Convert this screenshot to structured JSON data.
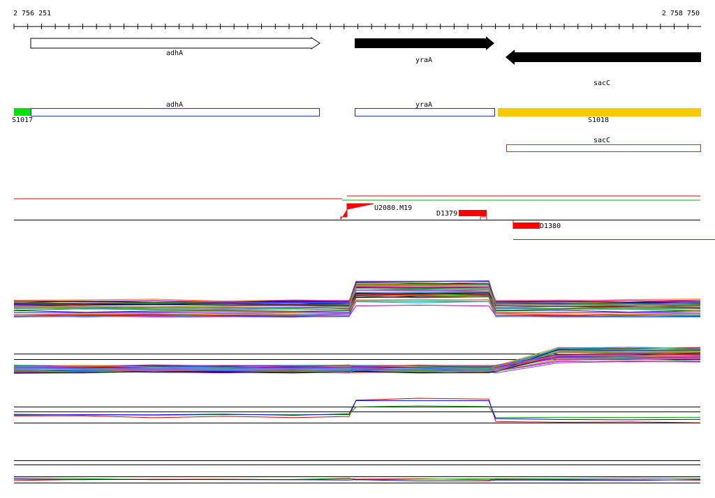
{
  "ruler": {
    "start": "2 756 251",
    "end": "2 758 750"
  },
  "genes": [
    {
      "label": "adhA"
    },
    {
      "label": "yraA"
    },
    {
      "label": "sacC"
    }
  ],
  "transcripts": [
    {
      "label": "adhA"
    },
    {
      "label": "yraA"
    },
    {
      "label": "sacC"
    }
  ],
  "segments": [
    {
      "label": "S1017"
    },
    {
      "label": "S1018"
    }
  ],
  "features": [
    {
      "label": "U2080.M19"
    },
    {
      "label": "D1379"
    },
    {
      "label": "D1380"
    }
  ]
}
